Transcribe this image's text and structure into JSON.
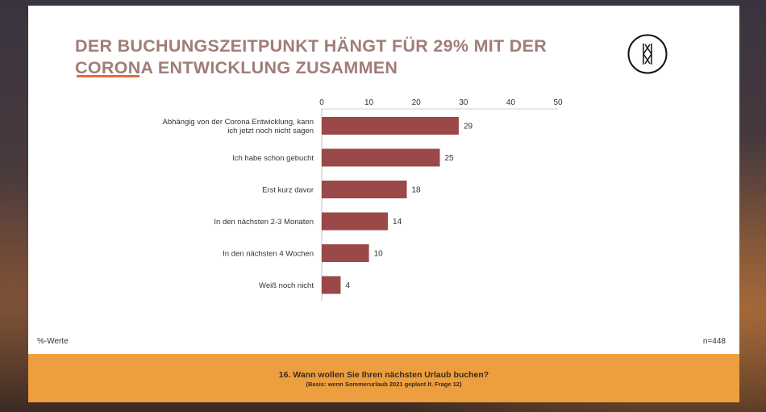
{
  "slide": {
    "title_line1": "DER BUCHUNGSZEITPUNKT HÄNGT FÜR 29% MIT DER",
    "title_line2": "CORONA ENTWICKLUNG ZUSAMMEN",
    "unit_note": "%-Werte",
    "sample_size": "n=448",
    "question": "16. Wann wollen Sie Ihren nächsten Urlaub buchen?",
    "question_basis": "(Basis: wenn Sommerurlaub 2021 geplant lt. Frage 12)",
    "accent_color": "#e8673a",
    "title_color": "#a07d7a",
    "footer_color": "#ed9f3f"
  },
  "chart_data": {
    "type": "bar",
    "orientation": "horizontal",
    "categories": [
      [
        "Abhängig von der Corona Entwicklung, kann",
        "ich jetzt noch nicht sagen"
      ],
      [
        "Ich habe schon gebucht"
      ],
      [
        "Erst kurz davor"
      ],
      [
        "In den nächsten 2-3 Monaten"
      ],
      [
        "In den nächsten 4 Wochen"
      ],
      [
        "Weiß noch nicht"
      ]
    ],
    "values": [
      29,
      25,
      18,
      14,
      10,
      4
    ],
    "xlim": [
      0,
      50
    ],
    "xticks": [
      0,
      10,
      20,
      30,
      40,
      50
    ],
    "axis_position": "top",
    "grid": false,
    "bar_color": "#9b4848"
  }
}
